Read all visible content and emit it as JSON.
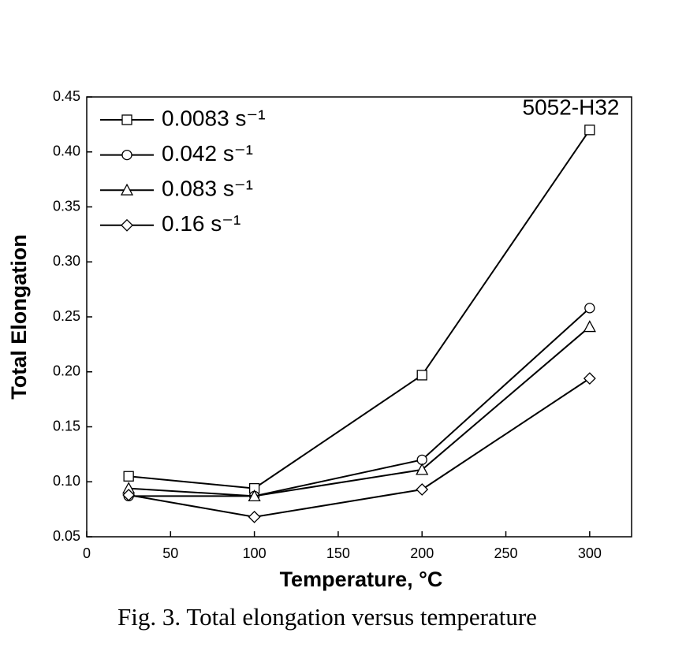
{
  "chart_data": {
    "type": "line",
    "x_label": "Temperature, °C",
    "y_label": "Total Elongation",
    "annotation": "5052-H32",
    "caption": "Fig. 3. Total elongation versus temperature",
    "x": [
      25,
      100,
      200,
      300
    ],
    "series": [
      {
        "name": "0.0083 s⁻¹",
        "color": "#000000",
        "marker": "square",
        "values": [
          0.105,
          0.094,
          0.197,
          0.42
        ]
      },
      {
        "name": "0.042 s⁻¹",
        "color": "#000000",
        "marker": "circle",
        "values": [
          0.087,
          0.087,
          0.12,
          0.258
        ]
      },
      {
        "name": "0.083 s⁻¹",
        "color": "#000000",
        "marker": "triangle",
        "values": [
          0.094,
          0.087,
          0.111,
          0.241
        ]
      },
      {
        "name": "0.16 s⁻¹",
        "color": "#000000",
        "marker": "diamond",
        "values": [
          0.088,
          0.068,
          0.093,
          0.194
        ]
      }
    ],
    "xlim": [
      0,
      325
    ],
    "xticks": [
      0,
      50,
      100,
      150,
      200,
      250,
      300
    ],
    "ylim": [
      0.05,
      0.45
    ],
    "yticks": [
      0.05,
      {
        "value": 0.1,
        "label": "0.10"
      },
      0.15,
      {
        "value": 0.2,
        "label": "0.20"
      },
      0.25,
      {
        "value": 0.3,
        "label": "0.30"
      },
      0.35,
      {
        "value": 0.4,
        "label": "0.40"
      },
      0.45
    ],
    "legend": "top-left",
    "grid": false
  }
}
